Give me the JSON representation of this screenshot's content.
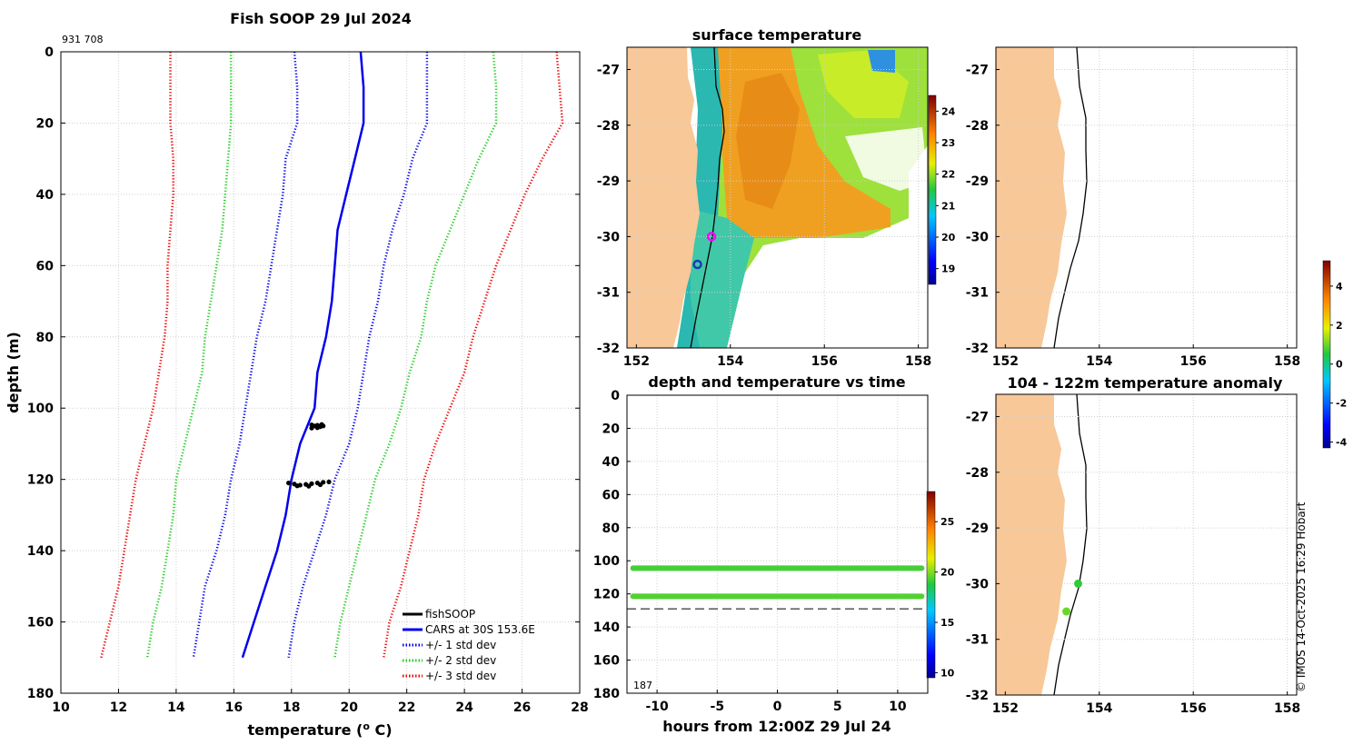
{
  "chart_data": [
    {
      "id": "profile",
      "type": "line",
      "title": "Fish SOOP 29 Jul 2024",
      "corner_label": "931 708",
      "xlabel": "temperature (",
      "xlabel_sup": "o",
      "xlabel_tail": " C)",
      "ylabel": "depth (m)",
      "xlim": [
        10,
        28
      ],
      "ylim": [
        0,
        180
      ],
      "y_reversed": true,
      "xticks": [
        "10",
        "12",
        "14",
        "16",
        "18",
        "20",
        "22",
        "24",
        "26",
        "28"
      ],
      "yticks": [
        "0",
        "20",
        "40",
        "60",
        "80",
        "100",
        "120",
        "140",
        "160",
        "180"
      ],
      "depth": [
        0,
        10,
        20,
        30,
        40,
        50,
        60,
        70,
        80,
        90,
        100,
        110,
        120,
        130,
        140,
        150,
        160,
        170
      ],
      "series": [
        {
          "name": "CARS at 30S 153.6E",
          "color": "#0000ee",
          "style": "solid",
          "values": [
            20.4,
            20.5,
            20.5,
            20.2,
            19.9,
            19.6,
            19.5,
            19.4,
            19.2,
            18.9,
            18.8,
            18.3,
            18.0,
            17.8,
            17.5,
            17.1,
            16.7,
            16.3
          ]
        },
        {
          "name": "+/- 1 std dev",
          "color": "#0000ee",
          "style": "dotted",
          "values": [
            22.7,
            22.7,
            22.7,
            22.2,
            21.9,
            21.5,
            21.2,
            21.0,
            20.7,
            20.5,
            20.3,
            20.0,
            19.5,
            19.2,
            18.8,
            18.4,
            18.1,
            17.9
          ]
        },
        {
          "name": "+/- 1 std dev lower",
          "color": "#0000ee",
          "style": "dotted",
          "legend": false,
          "values": [
            18.1,
            18.2,
            18.2,
            17.8,
            17.7,
            17.5,
            17.3,
            17.1,
            16.8,
            16.6,
            16.4,
            16.2,
            15.9,
            15.7,
            15.4,
            15.0,
            14.8,
            14.6
          ]
        },
        {
          "name": "+/- 2 std dev",
          "color": "#22cc22",
          "style": "dotted",
          "values": [
            25.0,
            25.1,
            25.1,
            24.5,
            24.0,
            23.5,
            23.0,
            22.7,
            22.5,
            22.1,
            21.8,
            21.4,
            20.9,
            20.6,
            20.3,
            20.0,
            19.7,
            19.5
          ]
        },
        {
          "name": "+/- 2 std dev lower",
          "color": "#22cc22",
          "style": "dotted",
          "legend": false,
          "values": [
            15.9,
            15.9,
            15.9,
            15.8,
            15.7,
            15.6,
            15.4,
            15.2,
            15.0,
            14.9,
            14.6,
            14.3,
            14.0,
            13.9,
            13.7,
            13.5,
            13.2,
            13.0
          ]
        },
        {
          "name": "+/- 3 std dev",
          "color": "#ee0000",
          "style": "dotted",
          "values": [
            27.2,
            27.3,
            27.4,
            26.7,
            26.1,
            25.6,
            25.1,
            24.7,
            24.3,
            24.0,
            23.5,
            23.0,
            22.6,
            22.4,
            22.1,
            21.8,
            21.4,
            21.2
          ]
        },
        {
          "name": "+/- 3 std dev lower",
          "color": "#ee0000",
          "style": "dotted",
          "legend": false,
          "values": [
            13.8,
            13.8,
            13.8,
            13.9,
            13.9,
            13.8,
            13.7,
            13.7,
            13.6,
            13.4,
            13.2,
            12.9,
            12.6,
            12.4,
            12.2,
            12.0,
            11.7,
            11.4
          ]
        }
      ],
      "fishsoop": {
        "name": "fishSOOP",
        "color": "#000000",
        "points": [
          [
            18.7,
            104.7
          ],
          [
            18.8,
            105.0
          ],
          [
            18.9,
            104.8
          ],
          [
            19.0,
            105.2
          ],
          [
            19.1,
            105.0
          ],
          [
            18.7,
            105.6
          ],
          [
            18.9,
            105.5
          ],
          [
            19.05,
            104.6
          ],
          [
            17.9,
            121.0
          ],
          [
            18.1,
            121.3
          ],
          [
            18.3,
            121.6
          ],
          [
            18.5,
            121.4
          ],
          [
            18.7,
            121.2
          ],
          [
            18.9,
            121.0
          ],
          [
            19.1,
            120.8
          ],
          [
            19.3,
            120.7
          ],
          [
            18.2,
            121.8
          ],
          [
            18.6,
            121.9
          ],
          [
            19.0,
            121.5
          ]
        ]
      },
      "legend": [
        {
          "label": "fishSOOP",
          "color": "#000000",
          "style": "solid"
        },
        {
          "label": "CARS at 30S 153.6E",
          "color": "#0000ee",
          "style": "solid"
        },
        {
          "label": "+/- 1 std dev",
          "color": "#0000ee",
          "style": "dotted"
        },
        {
          "label": "+/- 2 std dev",
          "color": "#22cc22",
          "style": "dotted"
        },
        {
          "label": "+/- 3 std dev",
          "color": "#ee0000",
          "style": "dotted"
        }
      ]
    },
    {
      "id": "sst_map",
      "type": "heatmap",
      "title": "surface temperature",
      "xlim": [
        151.8,
        158.2
      ],
      "ylim": [
        -32,
        -26.6
      ],
      "xticks": [
        "152",
        "154",
        "156",
        "158"
      ],
      "yticks": [
        "-27",
        "-28",
        "-29",
        "-30",
        "-31",
        "-32"
      ],
      "colorbar_ticks": [
        "19",
        "20",
        "21",
        "22",
        "23",
        "24"
      ],
      "colorbar_range": [
        18.5,
        24.5
      ],
      "markers": [
        {
          "lon": 153.6,
          "lat": -30.0,
          "color": "#ff00ff",
          "label": "ship"
        },
        {
          "lon": 153.3,
          "lat": -30.5,
          "color": "#1f3ab3",
          "label": "station"
        }
      ]
    },
    {
      "id": "time_series",
      "type": "scatter",
      "title": "depth and temperature vs time",
      "xlabel": "hours from 12:00Z 29 Jul 24",
      "xlim": [
        -12.5,
        12.5
      ],
      "ylim": [
        0,
        180
      ],
      "y_reversed": true,
      "xticks": [
        "-10",
        "-5",
        "0",
        "5",
        "10"
      ],
      "yticks": [
        "0",
        "20",
        "40",
        "60",
        "80",
        "100",
        "120",
        "140",
        "160",
        "180"
      ],
      "bands": [
        {
          "depth": 104.5,
          "temperature": 19.2,
          "from": -12,
          "to": 12
        },
        {
          "depth": 121.5,
          "temperature": 19.4,
          "from": -12,
          "to": 12
        }
      ],
      "bottom_line_depth": 129,
      "corner_label": "187",
      "colorbar_ticks": [
        "10",
        "15",
        "20",
        "25"
      ],
      "colorbar_range": [
        9.5,
        28
      ]
    },
    {
      "id": "blank_map",
      "type": "scatter",
      "title": "",
      "xlim": [
        151.8,
        158.2
      ],
      "ylim": [
        -32,
        -26.6
      ],
      "xticks": [
        "152",
        "154",
        "156",
        "158"
      ],
      "yticks": [
        "-27",
        "-28",
        "-29",
        "-30",
        "-31",
        "-32"
      ]
    },
    {
      "id": "anomaly_map",
      "type": "scatter",
      "title": "104 - 122m temperature anomaly",
      "xlim": [
        151.8,
        158.2
      ],
      "ylim": [
        -32,
        -26.6
      ],
      "xticks": [
        "152",
        "154",
        "156",
        "158"
      ],
      "yticks": [
        "-27",
        "-28",
        "-29",
        "-30",
        "-31",
        "-32"
      ],
      "points": [
        {
          "lon": 153.55,
          "lat": -30.0,
          "anomaly": 0.6
        },
        {
          "lon": 153.3,
          "lat": -30.5,
          "anomaly": 1.0
        }
      ],
      "colorbar_ticks": [
        "4",
        "2",
        "0",
        "-2",
        "-4"
      ],
      "colorbar_range": [
        -4.3,
        5.3
      ]
    }
  ],
  "credit": "© IMOS 14-Oct-2025 16:29 Hobart",
  "colors": {
    "land": "#f8c898",
    "grid": "#cfcfcf"
  }
}
